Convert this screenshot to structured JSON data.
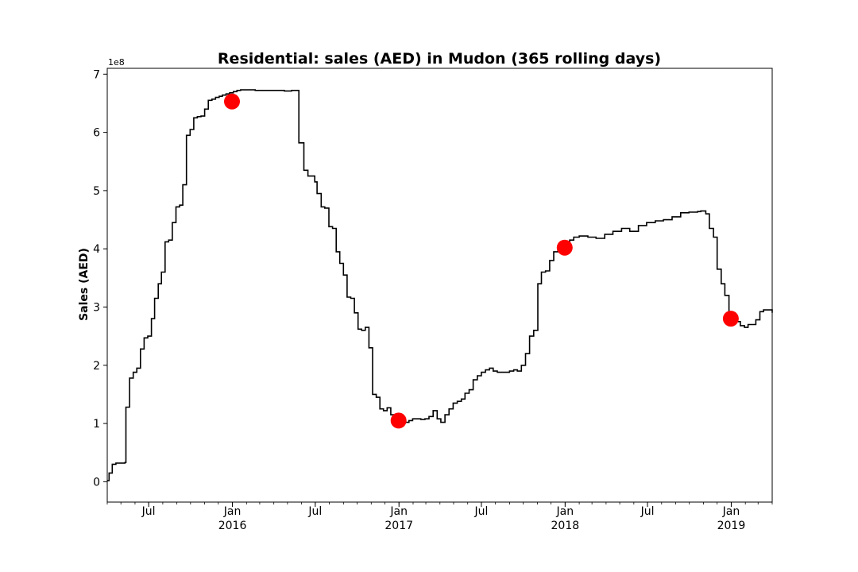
{
  "chart_data": {
    "type": "line",
    "title": "Residential: sales (AED) in Mudon (365 rolling days)",
    "xlabel": "",
    "ylabel": "Sales (AED)",
    "y_offset_label": "1e8",
    "y_scale": 100000000,
    "ylim": [
      -0.35,
      7.1
    ],
    "xlim": [
      "2015-04-01",
      "2019-04-01"
    ],
    "y_ticks": [
      0,
      1,
      2,
      3,
      4,
      5,
      6,
      7
    ],
    "y_tick_labels": [
      "0",
      "1",
      "2",
      "3",
      "4",
      "5",
      "6",
      "7"
    ],
    "x_ticks": [
      {
        "date": "2015-07-01",
        "label": "Jul",
        "sublabel": ""
      },
      {
        "date": "2016-01-01",
        "label": "Jan",
        "sublabel": "2016"
      },
      {
        "date": "2016-07-01",
        "label": "Jul",
        "sublabel": ""
      },
      {
        "date": "2017-01-01",
        "label": "Jan",
        "sublabel": "2017"
      },
      {
        "date": "2017-07-01",
        "label": "Jul",
        "sublabel": ""
      },
      {
        "date": "2018-01-01",
        "label": "Jan",
        "sublabel": "2018"
      },
      {
        "date": "2018-07-01",
        "label": "Jul",
        "sublabel": ""
      },
      {
        "date": "2019-01-01",
        "label": "Jan",
        "sublabel": "2019"
      }
    ],
    "grid": false,
    "series": [
      {
        "color": "#000000",
        "x": [
          "2015-04-01",
          "2015-04-05",
          "2015-04-12",
          "2015-04-20",
          "2015-05-10",
          "2015-05-12",
          "2015-05-20",
          "2015-05-28",
          "2015-06-05",
          "2015-06-13",
          "2015-06-21",
          "2015-06-29",
          "2015-07-07",
          "2015-07-14",
          "2015-07-22",
          "2015-07-29",
          "2015-08-06",
          "2015-08-14",
          "2015-08-22",
          "2015-08-30",
          "2015-09-07",
          "2015-09-14",
          "2015-09-22",
          "2015-09-30",
          "2015-10-08",
          "2015-10-16",
          "2015-10-24",
          "2015-11-01",
          "2015-11-09",
          "2015-11-17",
          "2015-11-25",
          "2015-12-03",
          "2015-12-10",
          "2015-12-18",
          "2015-12-26",
          "2016-01-03",
          "2016-01-11",
          "2016-01-19",
          "2016-02-04",
          "2016-02-20",
          "2016-03-07",
          "2016-03-23",
          "2016-04-08",
          "2016-04-24",
          "2016-05-10",
          "2016-05-26",
          "2016-06-06",
          "2016-06-15",
          "2016-06-30",
          "2016-07-05",
          "2016-07-14",
          "2016-07-22",
          "2016-07-31",
          "2016-08-08",
          "2016-08-16",
          "2016-08-24",
          "2016-09-01",
          "2016-09-09",
          "2016-09-17",
          "2016-09-25",
          "2016-10-03",
          "2016-10-11",
          "2016-10-19",
          "2016-10-27",
          "2016-11-04",
          "2016-11-12",
          "2016-11-20",
          "2016-11-28",
          "2016-12-06",
          "2016-12-14",
          "2016-12-22",
          "2016-12-30",
          "2017-01-07",
          "2017-01-15",
          "2017-01-23",
          "2017-01-31",
          "2017-02-09",
          "2017-02-18",
          "2017-02-27",
          "2017-03-08",
          "2017-03-17",
          "2017-03-26",
          "2017-04-03",
          "2017-04-12",
          "2017-04-21",
          "2017-04-30",
          "2017-05-09",
          "2017-05-18",
          "2017-05-26",
          "2017-06-04",
          "2017-06-13",
          "2017-06-22",
          "2017-07-01",
          "2017-07-10",
          "2017-07-19",
          "2017-07-27",
          "2017-08-05",
          "2017-08-14",
          "2017-08-23",
          "2017-09-01",
          "2017-09-10",
          "2017-09-18",
          "2017-09-27",
          "2017-10-06",
          "2017-10-15",
          "2017-10-24",
          "2017-11-02",
          "2017-11-10",
          "2017-11-19",
          "2017-11-28",
          "2017-12-07",
          "2017-12-16",
          "2017-12-25",
          "2018-01-03",
          "2018-01-11",
          "2018-01-20",
          "2018-02-01",
          "2018-02-20",
          "2018-03-10",
          "2018-03-29",
          "2018-04-16",
          "2018-05-05",
          "2018-05-23",
          "2018-06-11",
          "2018-06-29",
          "2018-07-18",
          "2018-08-05",
          "2018-08-24",
          "2018-09-12",
          "2018-09-30",
          "2018-10-19",
          "2018-10-26",
          "2018-11-06",
          "2018-11-14",
          "2018-11-23",
          "2018-12-01",
          "2018-12-10",
          "2018-12-18",
          "2018-12-27",
          "2019-01-04",
          "2019-01-13",
          "2019-01-21",
          "2019-01-30",
          "2019-02-07",
          "2019-02-16",
          "2019-02-24",
          "2019-03-05",
          "2019-03-13",
          "2019-03-22",
          "2019-04-01"
        ],
        "values": [
          0.02,
          0.15,
          0.3,
          0.32,
          0.33,
          1.28,
          1.78,
          1.88,
          1.95,
          2.28,
          2.47,
          2.5,
          2.8,
          3.15,
          3.4,
          3.6,
          4.12,
          4.15,
          4.45,
          4.72,
          4.75,
          5.1,
          5.95,
          6.05,
          6.25,
          6.27,
          6.28,
          6.4,
          6.55,
          6.57,
          6.6,
          6.62,
          6.64,
          6.66,
          6.68,
          6.7,
          6.72,
          6.73,
          6.73,
          6.72,
          6.72,
          6.72,
          6.72,
          6.71,
          6.72,
          5.82,
          5.35,
          5.25,
          5.15,
          4.95,
          4.72,
          4.7,
          4.38,
          4.35,
          3.95,
          3.75,
          3.55,
          3.17,
          3.15,
          2.9,
          2.62,
          2.6,
          2.65,
          2.3,
          1.5,
          1.45,
          1.25,
          1.22,
          1.27,
          1.15,
          1.08,
          1.05,
          1.05,
          1.02,
          1.05,
          1.08,
          1.08,
          1.07,
          1.08,
          1.12,
          1.22,
          1.08,
          1.02,
          1.15,
          1.25,
          1.35,
          1.38,
          1.42,
          1.52,
          1.58,
          1.75,
          1.82,
          1.88,
          1.92,
          1.95,
          1.9,
          1.88,
          1.88,
          1.88,
          1.9,
          1.92,
          1.9,
          2.0,
          2.2,
          2.5,
          2.6,
          3.4,
          3.6,
          3.62,
          3.8,
          3.95,
          4.02,
          4.05,
          4.1,
          4.15,
          4.2,
          4.22,
          4.2,
          4.18,
          4.25,
          4.3,
          4.35,
          4.3,
          4.4,
          4.45,
          4.48,
          4.5,
          4.55,
          4.62,
          4.63,
          4.64,
          4.65,
          4.6,
          4.35,
          4.2,
          3.65,
          3.4,
          3.2,
          2.92,
          2.82,
          2.75,
          2.68,
          2.65,
          2.7,
          2.7,
          2.78,
          2.92,
          2.95,
          2.95,
          2.9
        ]
      },
      {
        "type": "scatter",
        "color": "#ff0000",
        "x": [
          "2015-12-31",
          "2016-12-31",
          "2017-12-31",
          "2018-12-31"
        ],
        "values": [
          6.53,
          1.05,
          4.02,
          2.8
        ]
      }
    ]
  }
}
